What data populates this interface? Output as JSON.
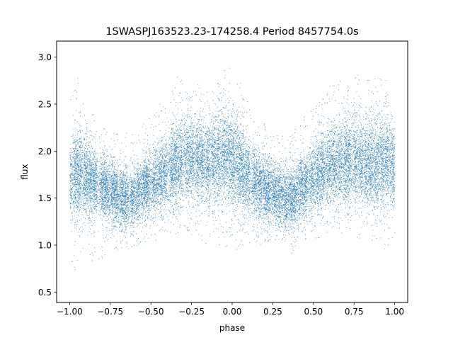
{
  "chart_data": {
    "type": "scatter",
    "title": "1SWASPJ163523.23-174258.4 Period 8457754.0s",
    "xlabel": "phase",
    "ylabel": "flux",
    "xlim": [
      -1.08,
      1.08
    ],
    "ylim": [
      0.39,
      3.17
    ],
    "xticks": [
      -1.0,
      -0.75,
      -0.5,
      -0.25,
      0.0,
      0.25,
      0.5,
      0.75,
      1.0
    ],
    "xtick_labels": [
      "−1.00",
      "−0.75",
      "−0.50",
      "−0.25",
      "0.00",
      "0.25",
      "0.50",
      "0.75",
      "1.00"
    ],
    "yticks": [
      0.5,
      1.0,
      1.5,
      2.0,
      2.5,
      3.0
    ],
    "ytick_labels": [
      "0.5",
      "1.0",
      "1.5",
      "2.0",
      "2.5",
      "3.0"
    ],
    "grid": false,
    "legend": "none",
    "marker_color": "#1f77b4",
    "profile_phase": [
      -1.0,
      -0.95,
      -0.9,
      -0.85,
      -0.8,
      -0.75,
      -0.7,
      -0.65,
      -0.6,
      -0.55,
      -0.5,
      -0.45,
      -0.4,
      -0.35,
      -0.3,
      -0.25,
      -0.2,
      -0.15,
      -0.1,
      -0.05,
      0.0,
      0.05,
      0.1,
      0.15,
      0.2,
      0.25,
      0.3,
      0.35,
      0.4,
      0.45,
      0.5,
      0.55,
      0.6,
      0.65,
      0.7,
      0.75,
      0.8,
      0.85,
      0.9,
      0.95,
      1.0
    ],
    "profile_median_flux": [
      1.72,
      1.78,
      1.74,
      1.68,
      1.62,
      1.58,
      1.52,
      1.48,
      1.52,
      1.6,
      1.66,
      1.72,
      1.78,
      1.86,
      1.9,
      1.92,
      1.9,
      1.86,
      1.9,
      1.95,
      1.92,
      1.82,
      1.72,
      1.66,
      1.6,
      1.55,
      1.52,
      1.5,
      1.56,
      1.64,
      1.72,
      1.8,
      1.85,
      1.88,
      1.9,
      1.92,
      1.88,
      1.84,
      1.88,
      1.92,
      1.82
    ],
    "profile_flux_min": [
      0.7,
      0.75,
      0.8,
      0.85,
      0.85,
      0.85,
      0.9,
      0.9,
      0.95,
      1.0,
      1.05,
      1.05,
      1.1,
      1.1,
      1.1,
      1.1,
      1.05,
      1.0,
      0.95,
      0.95,
      0.9,
      0.95,
      1.0,
      1.0,
      1.0,
      1.0,
      0.95,
      0.9,
      0.95,
      1.0,
      1.05,
      1.1,
      1.1,
      1.1,
      1.1,
      1.05,
      1.0,
      1.0,
      0.95,
      0.95,
      0.95
    ],
    "profile_flux_max": [
      2.65,
      2.8,
      2.6,
      2.4,
      2.3,
      2.3,
      2.2,
      2.2,
      2.2,
      2.3,
      2.4,
      2.5,
      2.6,
      2.8,
      2.8,
      2.75,
      2.7,
      2.7,
      2.85,
      2.95,
      2.9,
      2.75,
      2.55,
      2.4,
      2.3,
      2.2,
      2.2,
      2.2,
      2.3,
      2.4,
      2.5,
      2.6,
      2.7,
      2.75,
      2.8,
      2.85,
      2.8,
      2.75,
      2.8,
      2.9,
      2.6
    ],
    "profile_scatter_sigma": [
      0.22,
      0.22,
      0.2,
      0.18,
      0.16,
      0.16,
      0.15,
      0.15,
      0.15,
      0.16,
      0.17,
      0.18,
      0.2,
      0.22,
      0.22,
      0.22,
      0.22,
      0.22,
      0.24,
      0.26,
      0.25,
      0.22,
      0.2,
      0.18,
      0.17,
      0.16,
      0.16,
      0.16,
      0.16,
      0.17,
      0.18,
      0.2,
      0.21,
      0.22,
      0.22,
      0.22,
      0.22,
      0.22,
      0.23,
      0.25,
      0.22
    ],
    "observation_columns": [
      -1.0,
      -0.965,
      -0.94,
      -0.905,
      -0.875,
      -0.845,
      -0.8,
      -0.775,
      -0.74,
      -0.715,
      -0.68,
      -0.655,
      -0.615,
      -0.58,
      -0.545,
      -0.52,
      -0.48,
      -0.445,
      -0.415,
      -0.375,
      -0.35,
      -0.32,
      -0.28,
      -0.25,
      -0.215,
      -0.185,
      -0.15,
      -0.115,
      -0.085,
      -0.05,
      -0.02,
      0.005,
      0.04,
      0.065,
      0.095,
      0.135,
      0.165,
      0.2,
      0.225,
      0.26,
      0.29,
      0.325,
      0.36,
      0.385,
      0.42,
      0.45,
      0.49,
      0.525,
      0.555,
      0.59,
      0.625,
      0.66,
      0.695,
      0.72,
      0.755,
      0.79,
      0.825,
      0.855,
      0.885,
      0.92,
      0.95,
      0.985
    ]
  }
}
